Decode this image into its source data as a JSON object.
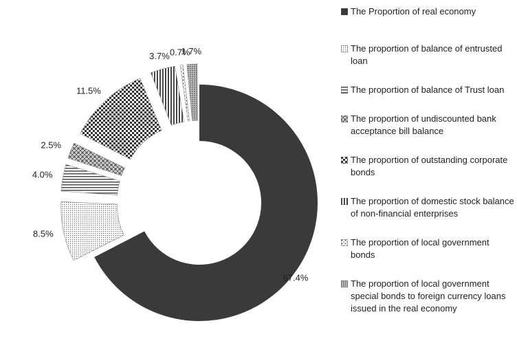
{
  "chart_data": {
    "type": "pie",
    "variant": "exploded-donut",
    "title": "",
    "slices": [
      {
        "label": "The Proportion of real economy",
        "value": 67.4,
        "display": "67.4%",
        "pattern": "solid-dark"
      },
      {
        "label": "The proportion of balance of entrusted loan",
        "value": 8.5,
        "display": "8.5%",
        "pattern": "fine-dots"
      },
      {
        "label": "The proportion of balance of  Trust loan",
        "value": 4.0,
        "display": "4.0%",
        "pattern": "horizontal-lines"
      },
      {
        "label": "The proportion of undiscounted bank acceptance bill balance",
        "value": 2.5,
        "display": "2.5%",
        "pattern": "crosshatch"
      },
      {
        "label": "The proportion of outstanding corporate bonds",
        "value": 11.5,
        "display": "11.5%",
        "pattern": "checker"
      },
      {
        "label": "The proportion of domestic stock balance of non-financial enterprises",
        "value": 3.7,
        "display": "3.7%",
        "pattern": "vertical-lines"
      },
      {
        "label": "The proportion of local government bonds",
        "value": 0.7,
        "display": "0.7%",
        "pattern": "sparse-dots"
      },
      {
        "label": "The proportion of local government special bonds to foreign currency loans issued in the real economy",
        "value": 1.7,
        "display": "1.7%",
        "pattern": "dense-dots"
      }
    ],
    "legend": "right",
    "colors": {
      "dark": "#3a3a3a",
      "pattern_ink": "#555555",
      "background": "#ffffff"
    }
  }
}
